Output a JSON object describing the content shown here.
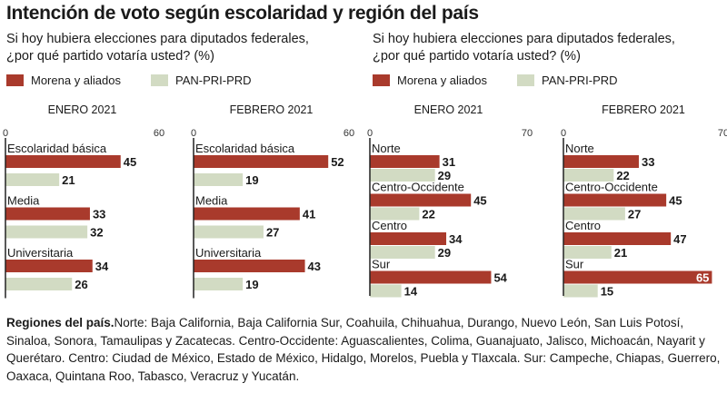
{
  "title": "Intención de voto según escolaridad y región del país",
  "question": [
    "Si hoy hubiera elecciones para diputados federales,",
    "¿por qué partido votaría usted? (%)"
  ],
  "legend": [
    {
      "label": "Morena y aliados",
      "color": "#a93a2c"
    },
    {
      "label": "PAN-PRI-PRD",
      "color": "#d2dbc3"
    }
  ],
  "colors": {
    "morena": "#a93a2c",
    "pan": "#d2dbc3",
    "axis": "#222222"
  },
  "chart_data": [
    {
      "type": "bar",
      "title": "ENERO 2021",
      "xlim": [
        0,
        60
      ],
      "ticks": [
        0,
        60
      ],
      "categories": [
        "Escolaridad básica",
        "Media",
        "Universitaria"
      ],
      "series": [
        {
          "name": "Morena y aliados",
          "values": [
            45,
            33,
            34
          ]
        },
        {
          "name": "PAN-PRI-PRD",
          "values": [
            21,
            32,
            26
          ]
        }
      ]
    },
    {
      "type": "bar",
      "title": "FEBRERO 2021",
      "xlim": [
        0,
        60
      ],
      "ticks": [
        0,
        60
      ],
      "categories": [
        "Escolaridad básica",
        "Media",
        "Universitaria"
      ],
      "series": [
        {
          "name": "Morena y aliados",
          "values": [
            52,
            41,
            43
          ]
        },
        {
          "name": "PAN-PRI-PRD",
          "values": [
            19,
            27,
            19
          ]
        }
      ]
    },
    {
      "type": "bar",
      "title": "ENERO 2021",
      "xlim": [
        0,
        70
      ],
      "ticks": [
        0,
        70
      ],
      "categories": [
        "Norte",
        "Centro-Occidente",
        "Centro",
        "Sur"
      ],
      "series": [
        {
          "name": "Morena y aliados",
          "values": [
            31,
            45,
            34,
            54
          ]
        },
        {
          "name": "PAN-PRI-PRD",
          "values": [
            29,
            22,
            29,
            14
          ]
        }
      ]
    },
    {
      "type": "bar",
      "title": "FEBRERO 2021",
      "xlim": [
        0,
        70
      ],
      "ticks": [
        0,
        70
      ],
      "categories": [
        "Norte",
        "Centro-Occidente",
        "Centro",
        "Sur"
      ],
      "series": [
        {
          "name": "Morena y aliados",
          "values": [
            33,
            45,
            47,
            65
          ]
        },
        {
          "name": "PAN-PRI-PRD",
          "values": [
            22,
            27,
            21,
            15
          ]
        }
      ]
    }
  ],
  "footer": {
    "heading": "Regiones del país.",
    "text": "Norte: Baja California, Baja California Sur, Coahuila, Chihuahua, Durango, Nuevo León, San Luis Potosí, Sinaloa, Sonora, Tamaulipas y Zacatecas. Centro-Occidente: Aguascalientes, Colima, Guanajuato, Jalisco, Michoacán, Nayarit y Querétaro. Centro: Ciudad de México, Estado de México, Hidalgo, Morelos, Puebla y Tlaxcala. Sur: Campeche, Chiapas, Guerrero, Oaxaca, Quintana Roo, Tabasco, Veracruz y Yucatán."
  }
}
